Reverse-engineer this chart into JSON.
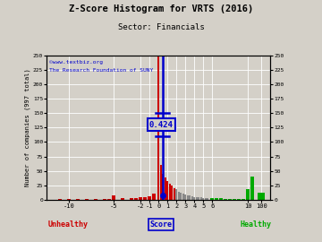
{
  "title": "Z-Score Histogram for VRTS (2016)",
  "subtitle": "Sector: Financials",
  "watermark1": "©www.textbiz.org",
  "watermark2": "The Research Foundation of SUNY",
  "xlabel_left": "Unhealthy",
  "xlabel_right": "Healthy",
  "xlabel_center": "Score",
  "ylabel": "Number of companies (997 total)",
  "vrts_score": 0.424,
  "bg_color": "#d4d0c8",
  "plot_bg": "#d4d0c8",
  "grid_color": "#ffffff",
  "annotation_color": "#0000cc",
  "watermark1_color": "#0000cc",
  "watermark2_color": "#0000cc",
  "unhealthy_color": "#cc0000",
  "healthy_color": "#00aa00",
  "score_color": "#0000cc",
  "bar_centers": [
    -11,
    -10,
    -9,
    -8,
    -7,
    -6,
    -5.5,
    -5,
    -4,
    -3,
    -2.5,
    -2,
    -1.5,
    -1,
    -0.5,
    0.0,
    0.25,
    0.5,
    0.75,
    1.0,
    1.25,
    1.5,
    1.75,
    2.0,
    2.25,
    2.5,
    2.75,
    3.0,
    3.25,
    3.5,
    3.75,
    4.0,
    4.25,
    4.5,
    4.75,
    5.0,
    5.25,
    5.5,
    6.0,
    6.5,
    7.0,
    7.5,
    8.0,
    8.5,
    9.0,
    9.5,
    10.0,
    10.5,
    11.5
  ],
  "bar_heights": [
    1,
    1,
    1,
    1,
    1,
    1,
    1,
    8,
    3,
    2,
    2,
    5,
    4,
    6,
    10,
    250,
    60,
    45,
    38,
    32,
    28,
    25,
    20,
    18,
    14,
    12,
    10,
    9,
    8,
    7,
    6,
    5,
    5,
    4,
    4,
    3,
    3,
    2,
    2,
    2,
    2,
    1,
    1,
    1,
    1,
    1,
    18,
    40,
    12
  ],
  "bar_colors": [
    "#cc0000",
    "#cc0000",
    "#cc0000",
    "#cc0000",
    "#cc0000",
    "#cc0000",
    "#cc0000",
    "#cc0000",
    "#cc0000",
    "#cc0000",
    "#cc0000",
    "#cc0000",
    "#cc0000",
    "#cc0000",
    "#cc0000",
    "#cc0000",
    "#cc0000",
    "#cc0000",
    "#cc0000",
    "#cc0000",
    "#cc0000",
    "#cc0000",
    "#cc0000",
    "#888888",
    "#888888",
    "#888888",
    "#888888",
    "#888888",
    "#888888",
    "#888888",
    "#888888",
    "#888888",
    "#888888",
    "#888888",
    "#888888",
    "#888888",
    "#888888",
    "#888888",
    "#00aa00",
    "#00aa00",
    "#00aa00",
    "#00aa00",
    "#00aa00",
    "#00aa00",
    "#00aa00",
    "#00aa00",
    "#00aa00",
    "#00aa00",
    "#00aa00"
  ],
  "bar_widths": [
    0.4,
    0.4,
    0.4,
    0.4,
    0.4,
    0.4,
    0.4,
    0.4,
    0.4,
    0.4,
    0.4,
    0.4,
    0.4,
    0.4,
    0.4,
    0.22,
    0.22,
    0.22,
    0.22,
    0.22,
    0.22,
    0.22,
    0.22,
    0.22,
    0.22,
    0.22,
    0.22,
    0.22,
    0.22,
    0.22,
    0.22,
    0.22,
    0.22,
    0.22,
    0.22,
    0.22,
    0.22,
    0.22,
    0.4,
    0.4,
    0.4,
    0.4,
    0.4,
    0.4,
    0.4,
    0.4,
    0.4,
    0.4,
    0.8
  ],
  "xlim": [
    -12.5,
    12.5
  ],
  "ylim": [
    0,
    250
  ],
  "yticks": [
    0,
    25,
    50,
    75,
    100,
    125,
    150,
    175,
    200,
    225,
    250
  ],
  "xtick_positions": [
    -10,
    -5,
    -2,
    -1,
    0,
    1,
    2,
    3,
    4,
    5,
    6,
    10,
    11.5
  ],
  "xtick_labels": [
    "-10",
    "-5",
    "-2",
    "-1",
    "0",
    "1",
    "2",
    "3",
    "4",
    "5",
    "6",
    "10",
    "100"
  ],
  "crosshair_y": 130,
  "crosshair_x1": -0.3,
  "crosshair_x2": 1.2,
  "crosshair_half_height": 20,
  "dot_y": 8
}
